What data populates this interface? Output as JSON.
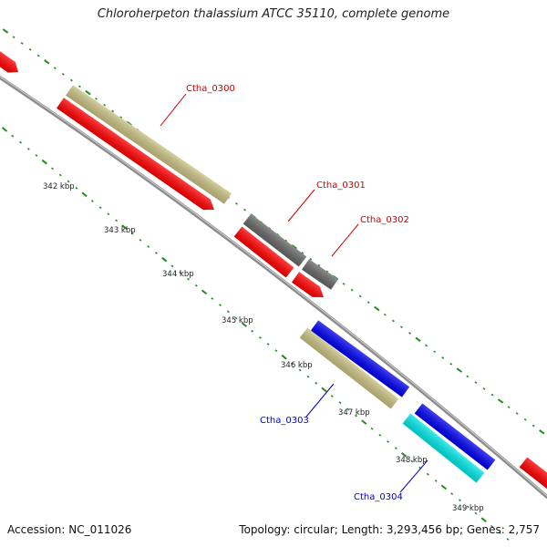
{
  "title": "Chloroherpeton thalassium ATCC 35110, complete genome",
  "footer": {
    "accession_label": "Accession:",
    "accession": "NC_011026",
    "topology_label": "Topology:",
    "topology": "circular",
    "length_label": "Length:",
    "length": "3,293,456 bp",
    "genes_label": "Genes:",
    "genes": "2,757"
  },
  "colors": {
    "backbone": "#8c8c8c",
    "tick": "#228b22",
    "red_gene": "#ff0000",
    "khaki_gene": "#c8c083",
    "gray_gene": "#666666",
    "blue_gene": "#0000ee",
    "cyan_gene": "#00e5e5",
    "label_red": "#cc0000",
    "label_blue": "#0000cc"
  },
  "scale_labels": [
    "342 kbp",
    "343 kbp",
    "344 kbp",
    "345 kbp",
    "346 kbp",
    "347 kbp",
    "348 kbp",
    "349 kbp"
  ],
  "gene_labels": [
    {
      "id": "Ctha_0300",
      "color": "label_red"
    },
    {
      "id": "Ctha_0301",
      "color": "label_red"
    },
    {
      "id": "Ctha_0302",
      "color": "label_red"
    },
    {
      "id": "Ctha_0303",
      "color": "label_blue"
    },
    {
      "id": "Ctha_0304",
      "color": "label_blue"
    }
  ],
  "genes": [
    {
      "name": "gene-red-1",
      "color": "red_gene"
    },
    {
      "name": "gene-red-2",
      "color": "red_gene"
    },
    {
      "name": "gene-khaki-ctha0300",
      "color": "khaki_gene"
    },
    {
      "name": "gene-gray-ctha0301",
      "color": "gray_gene"
    },
    {
      "name": "gene-gray-ctha0302",
      "color": "gray_gene"
    },
    {
      "name": "gene-red-3",
      "color": "red_gene"
    },
    {
      "name": "gene-red-4",
      "color": "red_gene"
    },
    {
      "name": "gene-blue-1",
      "color": "blue_gene"
    },
    {
      "name": "gene-khaki-ctha0303",
      "color": "khaki_gene"
    },
    {
      "name": "gene-blue-2",
      "color": "blue_gene"
    },
    {
      "name": "gene-cyan-ctha0304",
      "color": "cyan_gene"
    },
    {
      "name": "gene-red-5",
      "color": "red_gene"
    }
  ]
}
